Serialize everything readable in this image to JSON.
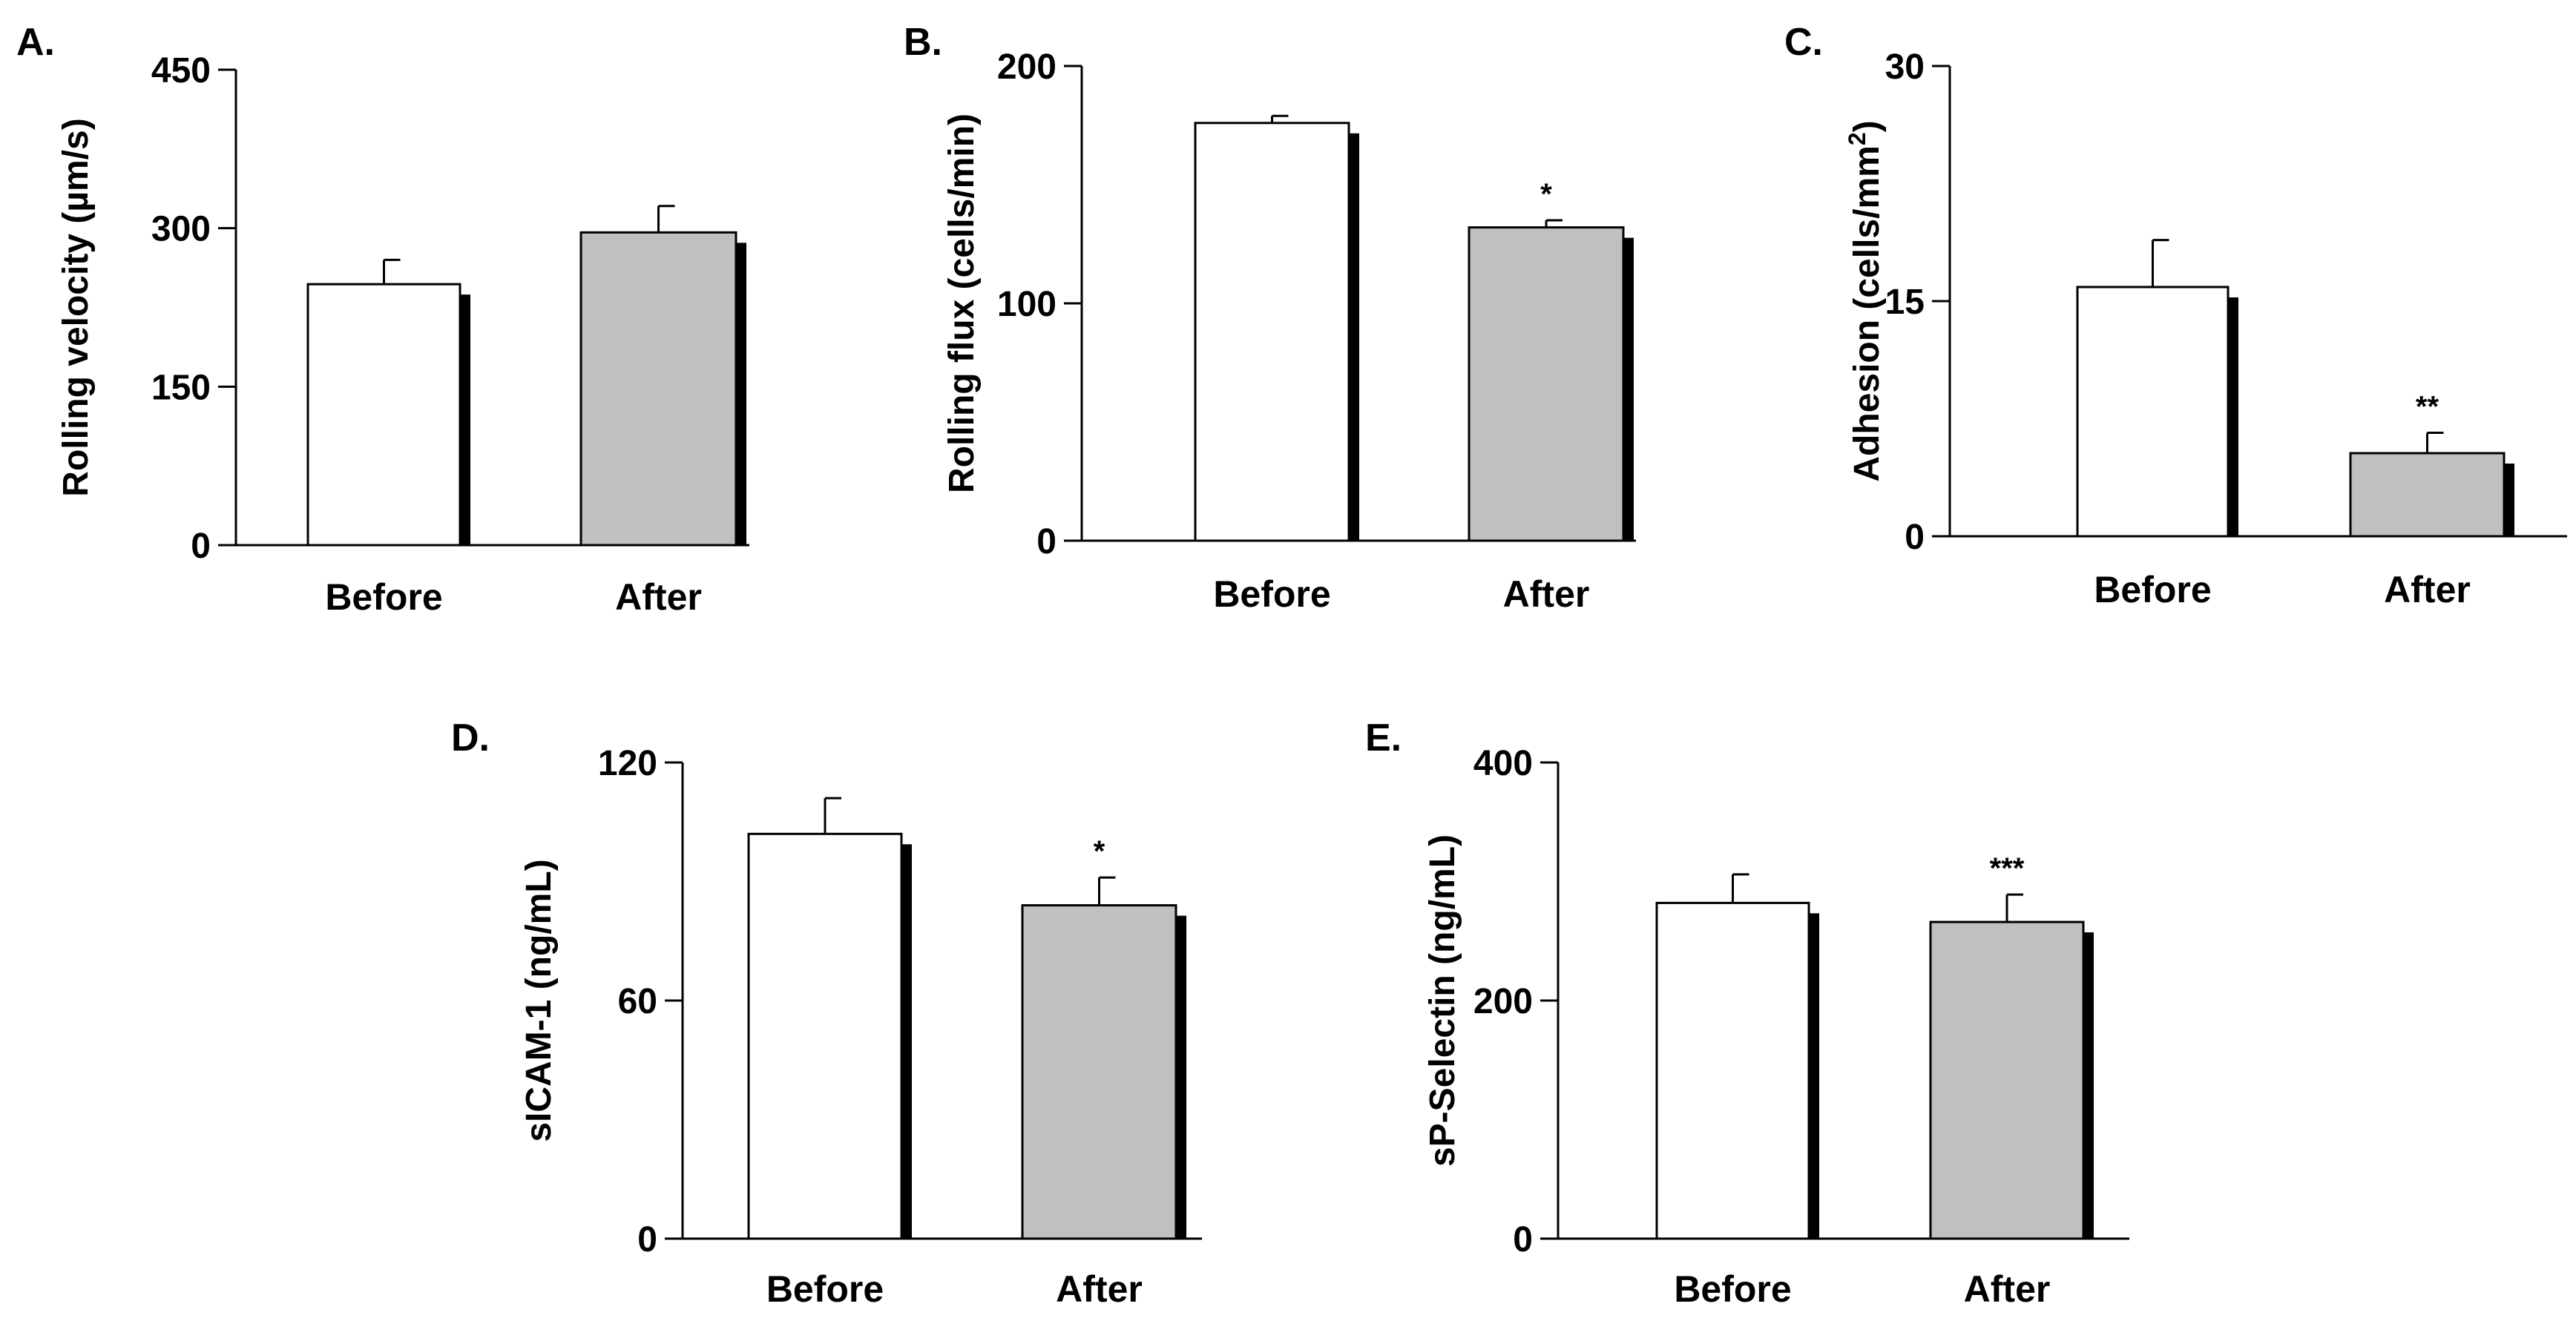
{
  "figure": {
    "colors": {
      "before": "#ffffff",
      "after": "#c0c0c0",
      "stroke": "#000000"
    }
  },
  "chart_data": [
    {
      "type": "bar",
      "panel": "A.",
      "title": "",
      "ylabel": "Rolling velocity (µm/s)",
      "xlabel": "",
      "ylim": [
        0,
        450
      ],
      "yticks": [
        0,
        150,
        300,
        450
      ],
      "categories": [
        "Before",
        "After"
      ],
      "values": [
        247,
        296
      ],
      "errors": [
        23,
        25
      ],
      "significance": [
        "",
        ""
      ]
    },
    {
      "type": "bar",
      "panel": "B.",
      "title": "",
      "ylabel": "Rolling flux (cells/min)",
      "xlabel": "",
      "ylim": [
        0,
        200
      ],
      "yticks": [
        0,
        100,
        200
      ],
      "categories": [
        "Before",
        "After"
      ],
      "values": [
        176,
        132
      ],
      "errors": [
        3,
        3
      ],
      "significance": [
        "",
        "*"
      ]
    },
    {
      "type": "bar",
      "panel": "C.",
      "title": "",
      "ylabel": "Adhesion (cells/mm²)",
      "xlabel": "",
      "ylim": [
        0,
        30
      ],
      "yticks": [
        0,
        15,
        30
      ],
      "categories": [
        "Before",
        "After"
      ],
      "values": [
        15.9,
        5.3
      ],
      "errors": [
        3.0,
        1.3
      ],
      "significance": [
        "",
        "**"
      ]
    },
    {
      "type": "bar",
      "panel": "D.",
      "title": "",
      "ylabel": "sICAM-1 (ng/mL)",
      "xlabel": "",
      "ylim": [
        0,
        120
      ],
      "yticks": [
        0,
        60,
        120
      ],
      "categories": [
        "Before",
        "After"
      ],
      "values": [
        102,
        84
      ],
      "errors": [
        9,
        7
      ],
      "significance": [
        "",
        "*"
      ]
    },
    {
      "type": "bar",
      "panel": "E.",
      "title": "",
      "ylabel": "sP-Selectin (ng/mL)",
      "xlabel": "",
      "ylim": [
        0,
        400
      ],
      "yticks": [
        0,
        200,
        400
      ],
      "categories": [
        "Before",
        "After"
      ],
      "values": [
        282,
        266
      ],
      "errors": [
        24,
        23
      ],
      "significance": [
        "",
        "***"
      ]
    }
  ]
}
